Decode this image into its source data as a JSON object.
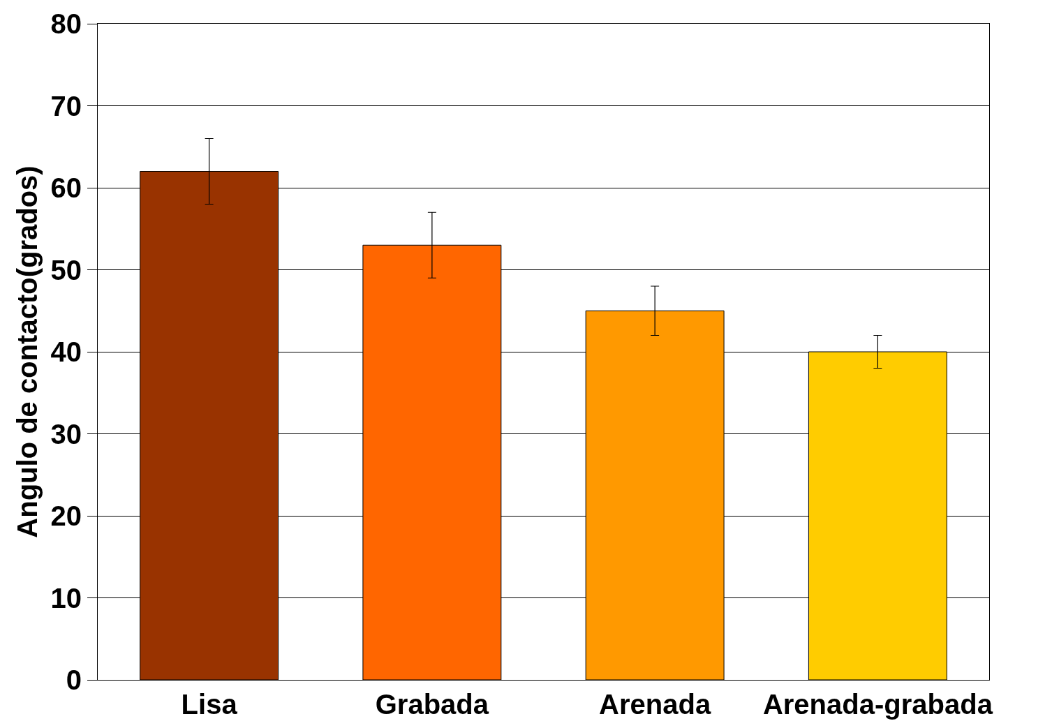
{
  "chart_data": {
    "type": "bar",
    "ylabel": "Angulo de contacto(grados)",
    "categories": [
      "Lisa",
      "Grabada",
      "Arenada",
      "Arenada-grabada"
    ],
    "values": [
      62,
      53,
      45,
      40
    ],
    "colors": [
      "#993300",
      "#ff6600",
      "#ff9900",
      "#ffcc00"
    ],
    "errors": [
      4,
      4,
      3,
      2
    ],
    "ylim": [
      0,
      80
    ],
    "yticks": [
      0,
      10,
      20,
      30,
      40,
      50,
      60,
      70,
      80
    ],
    "grid": "y"
  }
}
